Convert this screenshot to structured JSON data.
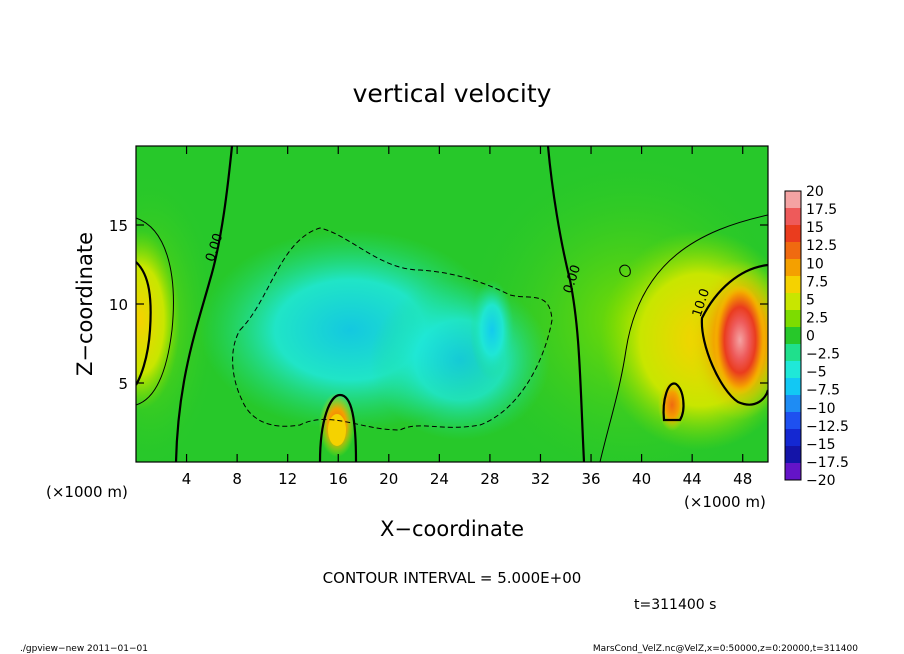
{
  "chart_data": {
    "type": "heatmap",
    "title": "vertical velocity",
    "xlabel": "X−coordinate",
    "ylabel": "Z−coordinate",
    "x_unit_label_left": "(×1000 m)",
    "x_unit_label_right": "(×1000 m)",
    "xlim": [
      0,
      50
    ],
    "ylim": [
      0,
      20
    ],
    "x_ticks": [
      4,
      8,
      12,
      16,
      20,
      24,
      28,
      32,
      36,
      40,
      44,
      48
    ],
    "y_ticks": [
      5,
      10,
      15
    ],
    "colorbar": {
      "labels": [
        "20",
        "17.5",
        "15",
        "12.5",
        "10",
        "7.5",
        "5",
        "2.5",
        "0",
        "−2.5",
        "−5",
        "−7.5",
        "−10",
        "−12.5",
        "−15",
        "−17.5",
        "−20"
      ],
      "colors": [
        "#f4a3a3",
        "#ee5a5a",
        "#ea3c1e",
        "#f06a10",
        "#f4a000",
        "#f5d200",
        "#c8e600",
        "#7ddc00",
        "#27c82a",
        "#1fe08c",
        "#1fe8d8",
        "#12c8f4",
        "#1e8cf4",
        "#1e50f0",
        "#1428d2",
        "#1414a8",
        "#6414c8"
      ]
    },
    "contour_labels": [
      {
        "text": "0.00",
        "x": 6.5,
        "z": 13.5
      },
      {
        "text": "0.00",
        "x": 34.8,
        "z": 11.5
      },
      {
        "text": "10.0",
        "x": 45.0,
        "z": 10.0
      }
    ],
    "contour_interval_text": "CONTOUR INTERVAL = 5.000E+00",
    "time_text": "t=311400 s",
    "footer_left": "./gpview−new   2011−01−01",
    "footer_right": "MarsCond_VelZ.nc@VelZ,x=0:50000,z=0:20000,t=311400"
  }
}
